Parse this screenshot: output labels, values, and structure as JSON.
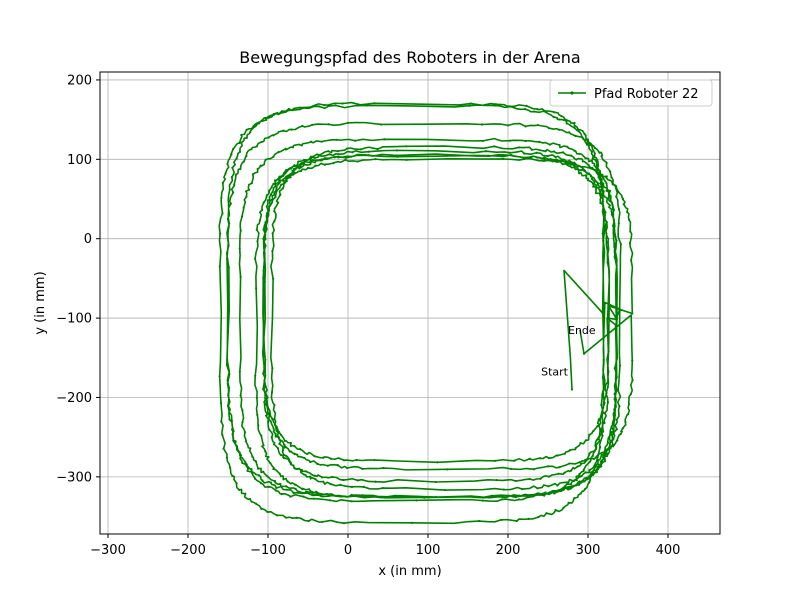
{
  "chart_data": {
    "type": "line",
    "title": "Bewegungspfad des Roboters in der Arena",
    "xlabel": "x (in mm)",
    "ylabel": "y (in mm)",
    "xlim": [
      -310,
      465
    ],
    "ylim": [
      -372,
      210
    ],
    "xticks": [
      -300,
      -200,
      -100,
      0,
      100,
      200,
      300,
      400
    ],
    "yticks": [
      -300,
      -200,
      -100,
      0,
      100,
      200
    ],
    "xtick_labels": [
      "−300",
      "−200",
      "−100",
      "0",
      "100",
      "200",
      "300",
      "400"
    ],
    "ytick_labels": [
      "−300",
      "−200",
      "−100",
      "0",
      "100",
      "200"
    ],
    "grid": true,
    "legend_position": "top-right",
    "series": [
      {
        "name": "Pfad Roboter 22",
        "color": "#008000",
        "loops": [
          {
            "cx": 80,
            "cy": -95,
            "hw": 240,
            "hh": 262,
            "rx": 55,
            "ry": 55
          },
          {
            "cx": 85,
            "cy": -80,
            "hw": 235,
            "hh": 250,
            "rx": 60,
            "ry": 60
          },
          {
            "cx": 95,
            "cy": -90,
            "hw": 245,
            "hh": 235,
            "rx": 55,
            "ry": 55
          },
          {
            "cx": 100,
            "cy": -100,
            "hw": 235,
            "hh": 225,
            "rx": 55,
            "ry": 55
          },
          {
            "cx": 110,
            "cy": -110,
            "hw": 225,
            "hh": 215,
            "rx": 60,
            "ry": 60
          },
          {
            "cx": 110,
            "cy": -100,
            "hw": 215,
            "hh": 205,
            "rx": 65,
            "ry": 65
          },
          {
            "cx": 120,
            "cy": -100,
            "hw": 215,
            "hh": 215,
            "rx": 55,
            "ry": 55
          },
          {
            "cx": 110,
            "cy": -85,
            "hw": 215,
            "hh": 195,
            "rx": 50,
            "ry": 50
          },
          {
            "cx": 125,
            "cy": -95,
            "hw": 230,
            "hh": 195,
            "rx": 45,
            "ry": 45
          }
        ],
        "start": [
          280,
          -190
        ],
        "end": [
          290,
          -115
        ]
      }
    ],
    "annotations": [
      {
        "text": "Start",
        "x": 280,
        "y": -190
      },
      {
        "text": "Ende",
        "x": 290,
        "y": -115
      }
    ]
  }
}
